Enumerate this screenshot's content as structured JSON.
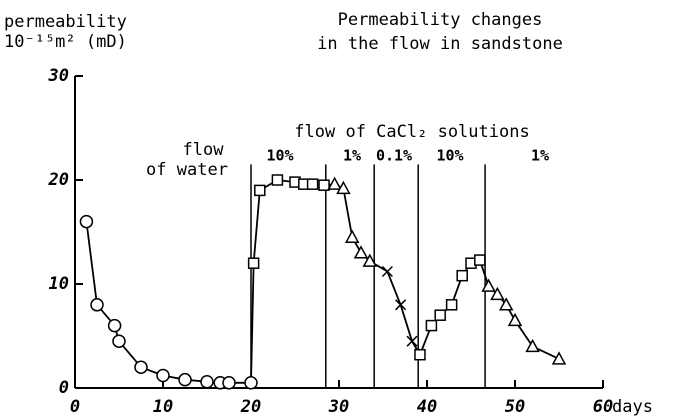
{
  "chart_data": {
    "type": "line",
    "title": [
      "Permeability changes",
      "in the flow in sandstone"
    ],
    "ylabel": [
      "permeability",
      "10⁻¹⁵m² (mD)"
    ],
    "xlabel": "days",
    "annotations": [
      "flow",
      "of water",
      "flow of CaCl₂ solutions",
      "10%",
      "1%",
      "0.1%",
      "10%",
      "1%"
    ],
    "xlim": [
      0,
      60
    ],
    "xticks": [
      0,
      10,
      20,
      30,
      40,
      50,
      60
    ],
    "ylim": [
      0,
      30
    ],
    "yticks": [
      0,
      10,
      20,
      30
    ],
    "vlines": [
      20,
      28.5,
      34,
      39,
      46.6
    ],
    "vline_top": 21.5,
    "series": [
      {
        "color": "#000000",
        "x": [
          1.3,
          2.5,
          4.5,
          5.0,
          7.5,
          10,
          12.5,
          15,
          16.5,
          17.5,
          20,
          20.3,
          21,
          23,
          25,
          26,
          27,
          28.3,
          29.5,
          30.5,
          31.5,
          32.5,
          33.5,
          35.5,
          37,
          38.3,
          39.2,
          40.5,
          41.5,
          42.8,
          44,
          45,
          46,
          47,
          48,
          49,
          50,
          52,
          55
        ],
        "values": [
          16,
          8,
          6,
          4.5,
          2,
          1.2,
          0.8,
          0.6,
          0.5,
          0.5,
          0.5,
          12,
          19,
          20,
          19.8,
          19.6,
          19.6,
          19.5,
          19.6,
          19.2,
          14.5,
          13,
          12.2,
          11.2,
          8,
          4.5,
          3.2,
          6,
          7,
          8,
          10.8,
          12,
          12.3,
          9.8,
          9,
          8,
          6.5,
          4,
          2.8
        ],
        "markers": [
          "o",
          "o",
          "o",
          "o",
          "o",
          "o",
          "o",
          "o",
          "o",
          "o",
          "o",
          "s",
          "s",
          "s",
          "s",
          "s",
          "s",
          "s",
          "t",
          "t",
          "t",
          "t",
          "t",
          "x",
          "x",
          "x",
          "s",
          "s",
          "s",
          "s",
          "s",
          "s",
          "s",
          "t",
          "t",
          "t",
          "t",
          "t",
          "t"
        ]
      }
    ]
  }
}
